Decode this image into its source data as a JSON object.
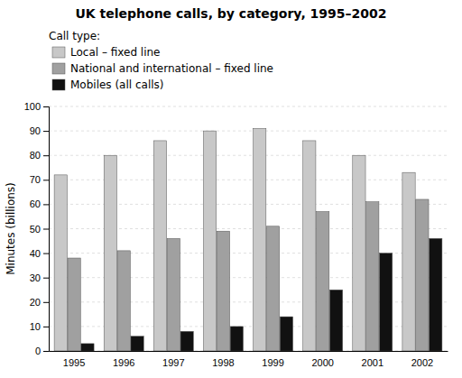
{
  "chart_data": {
    "type": "bar",
    "title": "UK telephone calls, by category, 1995–2002",
    "y_label": "Minutes (billions)",
    "legend_title": "Call type:",
    "categories": [
      "1995",
      "1996",
      "1997",
      "1998",
      "1999",
      "2000",
      "2001",
      "2002"
    ],
    "series": [
      {
        "name": "Local – fixed line",
        "color": "#c8c8c8",
        "values": [
          72,
          80,
          86,
          90,
          91,
          86,
          80,
          73
        ]
      },
      {
        "name": "National and international – fixed line",
        "color": "#a0a0a0",
        "values": [
          38,
          41,
          46,
          49,
          51,
          57,
          61,
          62
        ]
      },
      {
        "name": "Mobiles (all calls)",
        "color": "#111111",
        "values": [
          3,
          6,
          8,
          10,
          14,
          25,
          40,
          46
        ]
      }
    ],
    "ylim": [
      0,
      100
    ],
    "yticks": [
      0,
      10,
      20,
      30,
      40,
      50,
      60,
      70,
      80,
      90,
      100
    ],
    "grid": true,
    "legend": "top-left"
  }
}
